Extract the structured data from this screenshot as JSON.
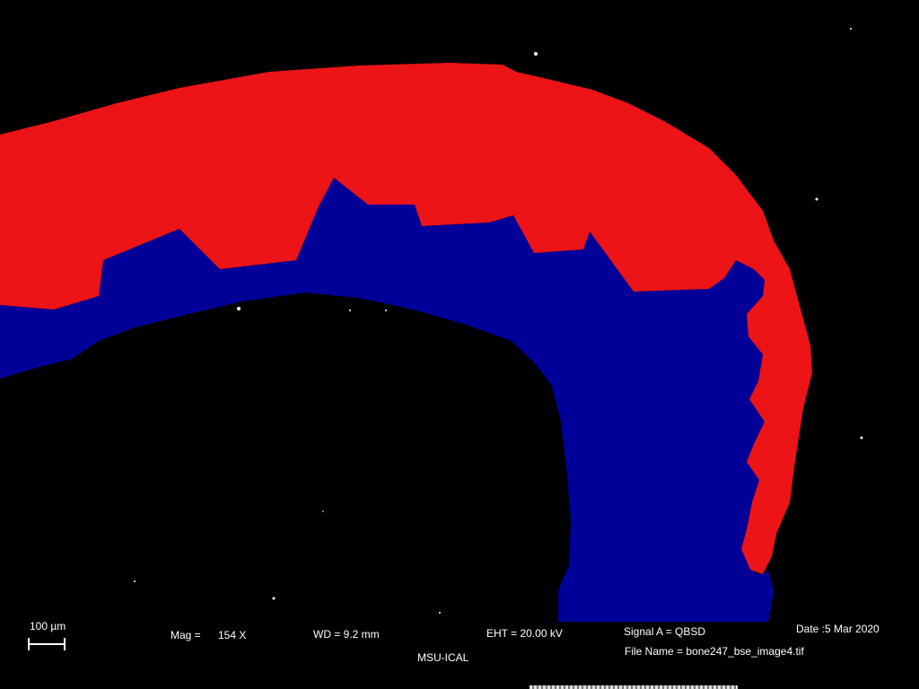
{
  "image": {
    "description_free": true,
    "colors": {
      "background": "#000000",
      "outer_region": "#ec1416",
      "inner_region": "#000099",
      "speckle": "#ffffff"
    }
  },
  "sem_info": {
    "scale_bar_label": "100 µm",
    "mag_label": "Mag =",
    "mag_value": "154 X",
    "wd": "WD =  9.2 mm",
    "eht": "EHT = 20.00 kV",
    "signal": "Signal A = QBSD",
    "date": "Date :5 Mar 2020",
    "file_name": "File Name = bone247_bse_image4.tif",
    "institution": "MSU-ICAL"
  }
}
